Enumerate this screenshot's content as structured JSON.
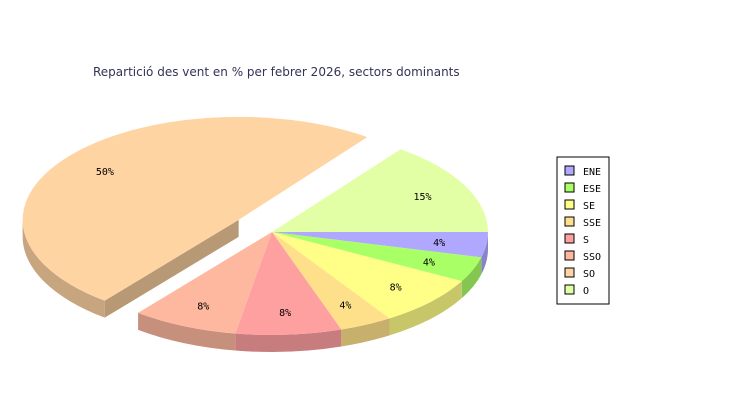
{
  "chart_data": {
    "type": "pie",
    "title": "Repartició des vent en % per febrer 2026, sectors dominants",
    "slices": [
      {
        "name": "ENE",
        "value": 4,
        "label": "4%",
        "color": "#b0a8ff"
      },
      {
        "name": "ESE",
        "value": 4,
        "label": "4%",
        "color": "#a8ff66"
      },
      {
        "name": "SE",
        "value": 8,
        "label": "8%",
        "color": "#ffff88"
      },
      {
        "name": "SSE",
        "value": 4,
        "label": "4%",
        "color": "#ffe08a"
      },
      {
        "name": "S",
        "value": 8,
        "label": "8%",
        "color": "#ffa0a0"
      },
      {
        "name": "SSO",
        "value": 8,
        "label": "8%",
        "color": "#ffb8a0"
      },
      {
        "name": "SO",
        "value": 50,
        "label": "50%",
        "color": "#ffd4a3"
      },
      {
        "name": "O",
        "value": 15,
        "label": "15%",
        "color": "#e2ffa6"
      }
    ],
    "exploded": "SO",
    "legend_position": "right"
  }
}
